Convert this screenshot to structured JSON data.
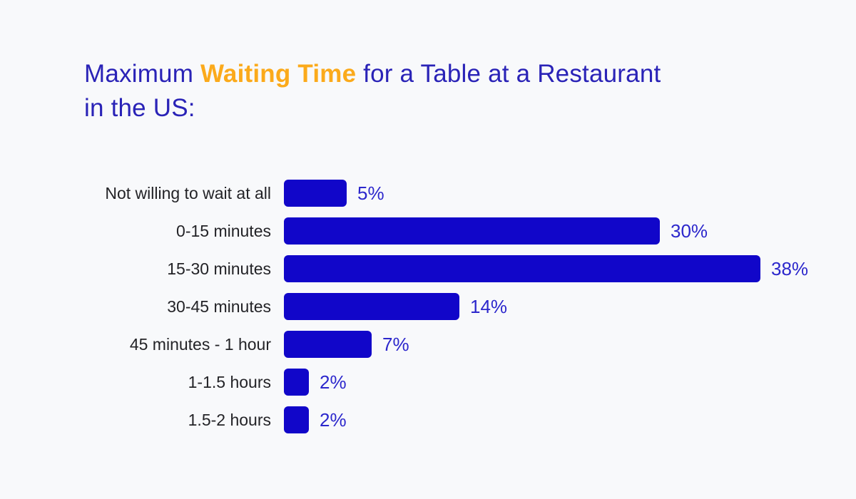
{
  "page": {
    "background_color": "#f8f9fb"
  },
  "title": {
    "prefix": "Maximum ",
    "highlight": "Waiting Time",
    "suffix": " for a Table at a Restaurant",
    "line2": "in the US:",
    "text_color": "#2a23b7",
    "highlight_color": "#fbaa1b"
  },
  "chart_data": {
    "type": "bar",
    "orientation": "horizontal",
    "title": "Maximum Waiting Time for a Table at a Restaurant in the US:",
    "categories": [
      "Not willing to wait at all",
      "0-15 minutes",
      "15-30 minutes",
      "30-45 minutes",
      "45 minutes - 1 hour",
      "1-1.5 hours",
      "1.5-2 hours"
    ],
    "values": [
      5,
      30,
      38,
      14,
      7,
      2,
      2
    ],
    "value_labels": [
      "5%",
      "30%",
      "38%",
      "14%",
      "7%",
      "2%",
      "2%"
    ],
    "xlim": [
      0,
      38
    ],
    "grid": false,
    "legend": false,
    "bar_color": "#1106c9",
    "value_label_color": "#2c27cc",
    "category_label_color": "#232327"
  }
}
